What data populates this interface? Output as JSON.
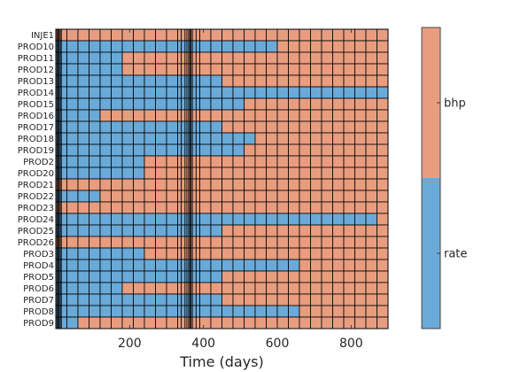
{
  "chart_data": {
    "type": "heatmap",
    "title": "",
    "xlabel": "Time (days)",
    "ylabel": "",
    "xlim": [
      0,
      900
    ],
    "x_ticks": [
      200,
      400,
      600,
      800
    ],
    "time_boundaries": [
      0,
      3,
      6,
      9,
      12,
      15,
      30,
      60,
      90,
      120,
      150,
      180,
      210,
      240,
      270,
      300,
      330,
      340,
      350,
      355,
      360,
      363,
      366,
      370,
      380,
      390,
      420,
      450,
      480,
      510,
      540,
      570,
      600,
      630,
      660,
      690,
      720,
      750,
      780,
      810,
      840,
      870,
      900
    ],
    "categories": [
      "INJE1",
      "PROD10",
      "PROD11",
      "PROD12",
      "PROD13",
      "PROD14",
      "PROD15",
      "PROD16",
      "PROD17",
      "PROD18",
      "PROD19",
      "PROD2",
      "PROD20",
      "PROD21",
      "PROD22",
      "PROD23",
      "PROD24",
      "PROD25",
      "PROD26",
      "PROD3",
      "PROD4",
      "PROD5",
      "PROD6",
      "PROD7",
      "PROD8",
      "PROD9"
    ],
    "colorbar": {
      "labels": [
        "rate",
        "bhp"
      ],
      "colors": [
        "#6aaad9",
        "#e99d7f"
      ]
    },
    "rate_until_days": [
      0,
      600,
      200,
      200,
      450,
      900,
      510,
      120,
      450,
      540,
      510,
      250,
      250,
      0,
      140,
      0,
      870,
      450,
      0,
      250,
      660,
      450,
      200,
      450,
      660,
      60
    ],
    "notes": "Each row is rate-controlled (blue) from t=0 until rate_until_days, then bhp-controlled (orange)."
  }
}
